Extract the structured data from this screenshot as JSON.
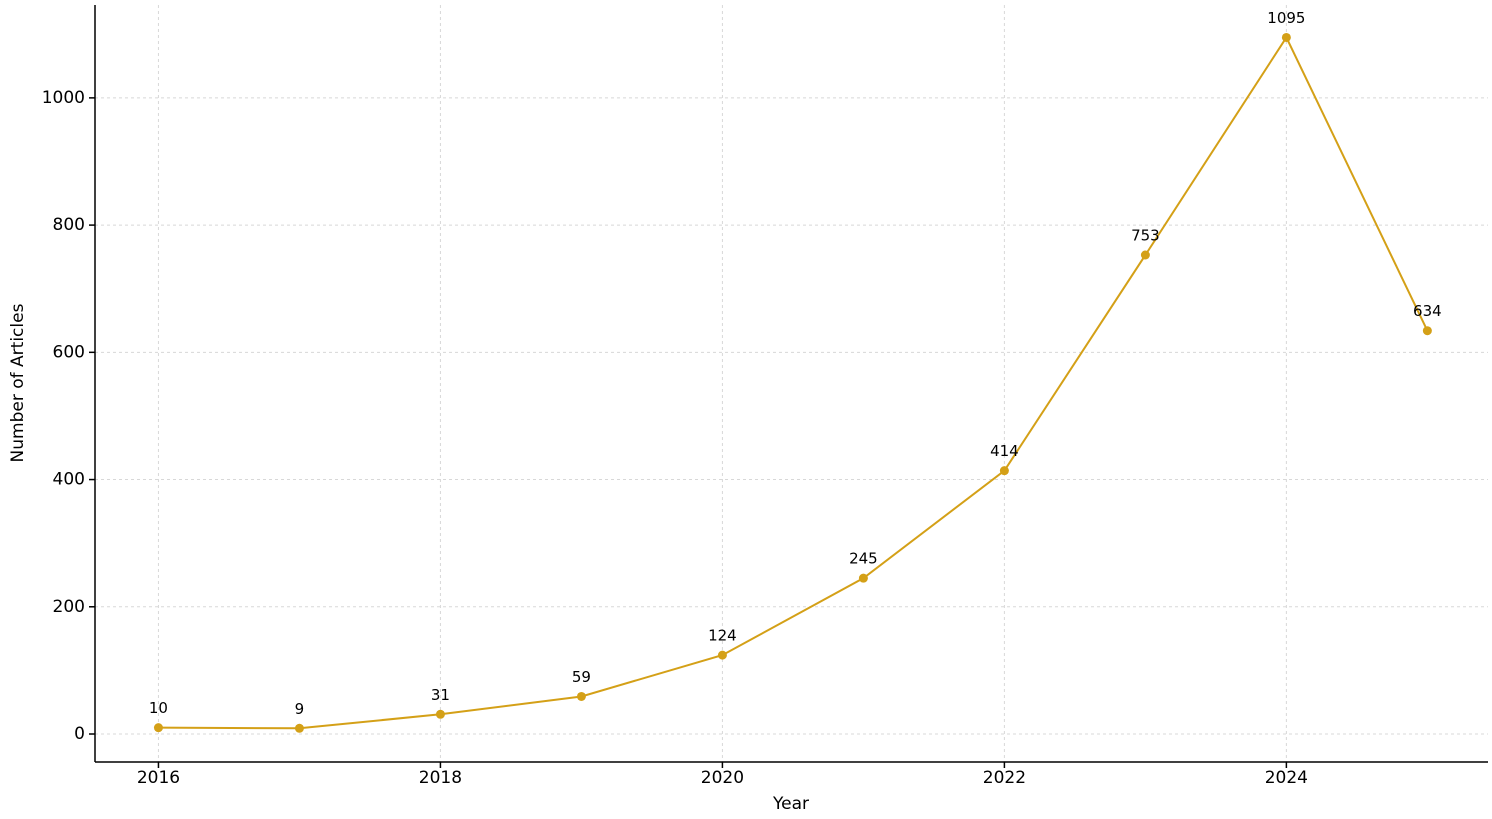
{
  "chart_data": {
    "type": "line",
    "x_label": "Year",
    "y_label": "Number of Articles",
    "x": [
      2016,
      2017,
      2018,
      2019,
      2020,
      2021,
      2022,
      2023,
      2024,
      2025
    ],
    "series": [
      {
        "color": "#d4a017",
        "values": [
          10,
          9,
          31,
          59,
          124,
          245,
          414,
          753,
          1095,
          634
        ]
      }
    ],
    "xlim": [
      2015.55,
      2025.43
    ],
    "xticks": [
      2016,
      2018,
      2020,
      2022,
      2024
    ],
    "ylim": [
      -44,
      1146
    ],
    "yticks": [
      0,
      200,
      400,
      600,
      800,
      1000
    ],
    "grid": true,
    "markers": true,
    "data_labels": true
  }
}
